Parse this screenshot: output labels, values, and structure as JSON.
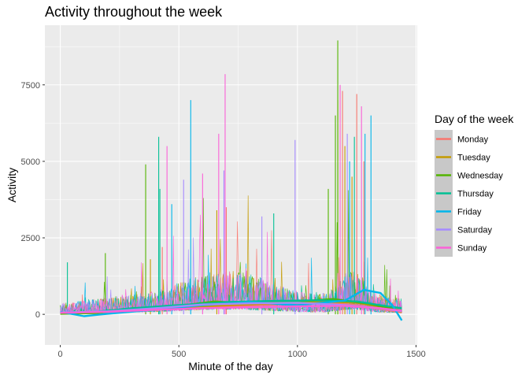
{
  "chart_data": {
    "type": "line",
    "title": "Activity throughout the week",
    "xlabel": "Minute of the day",
    "ylabel": "Activity",
    "xlim": [
      -65,
      1505
    ],
    "ylim": [
      -1000,
      9450
    ],
    "x_ticks": [
      0,
      500,
      1000,
      1500
    ],
    "x_tick_labels": [
      "0",
      "500",
      "1000",
      "1500"
    ],
    "y_ticks": [
      0,
      2500,
      5000,
      7500
    ],
    "y_tick_labels": [
      "0",
      "2500",
      "5000",
      "7500"
    ],
    "grid": true,
    "legend": {
      "title": "Day of the week",
      "placement": "right"
    },
    "series": [
      {
        "name": "Monday",
        "color": "#F8766D",
        "peaks": [
          [
            1190,
            7300
          ],
          [
            1250,
            7200
          ],
          [
            1280,
            5000
          ],
          [
            700,
            3500
          ],
          [
            430,
            2200
          ]
        ],
        "smooth": [
          [
            0,
            30
          ],
          [
            150,
            40
          ],
          [
            300,
            120
          ],
          [
            500,
            200
          ],
          [
            700,
            250
          ],
          [
            900,
            320
          ],
          [
            1100,
            380
          ],
          [
            1250,
            300
          ],
          [
            1350,
            180
          ],
          [
            1440,
            60
          ]
        ]
      },
      {
        "name": "Tuesday",
        "color": "#C49A00",
        "peaks": [
          [
            1170,
            7000
          ],
          [
            1200,
            5500
          ],
          [
            1230,
            4500
          ],
          [
            660,
            3400
          ],
          [
            380,
            1800
          ]
        ],
        "smooth": [
          [
            0,
            40
          ],
          [
            150,
            50
          ],
          [
            300,
            150
          ],
          [
            500,
            230
          ],
          [
            700,
            300
          ],
          [
            900,
            360
          ],
          [
            1100,
            420
          ],
          [
            1250,
            380
          ],
          [
            1350,
            250
          ],
          [
            1440,
            80
          ]
        ]
      },
      {
        "name": "Wednesday",
        "color": "#53B400",
        "peaks": [
          [
            1170,
            8950
          ],
          [
            1160,
            6500
          ],
          [
            360,
            4900
          ],
          [
            190,
            2000
          ],
          [
            1130,
            4100
          ]
        ],
        "smooth": [
          [
            0,
            20
          ],
          [
            150,
            40
          ],
          [
            300,
            160
          ],
          [
            500,
            280
          ],
          [
            650,
            420
          ],
          [
            800,
            360
          ],
          [
            1000,
            420
          ],
          [
            1150,
            500
          ],
          [
            1300,
            350
          ],
          [
            1440,
            120
          ]
        ]
      },
      {
        "name": "Thursday",
        "color": "#00C094",
        "peaks": [
          [
            415,
            5800
          ],
          [
            420,
            4100
          ],
          [
            30,
            1700
          ],
          [
            1240,
            5800
          ],
          [
            900,
            3300
          ]
        ],
        "smooth": [
          [
            0,
            60
          ],
          [
            150,
            80
          ],
          [
            300,
            200
          ],
          [
            500,
            300
          ],
          [
            700,
            400
          ],
          [
            900,
            440
          ],
          [
            1100,
            460
          ],
          [
            1250,
            420
          ],
          [
            1350,
            300
          ],
          [
            1440,
            200
          ]
        ]
      },
      {
        "name": "Friday",
        "color": "#00B6EB",
        "peaks": [
          [
            550,
            7000
          ],
          [
            1310,
            6500
          ],
          [
            1285,
            5900
          ],
          [
            1220,
            5000
          ],
          [
            470,
            3600
          ]
        ],
        "smooth": [
          [
            0,
            80
          ],
          [
            100,
            -60
          ],
          [
            200,
            20
          ],
          [
            400,
            150
          ],
          [
            600,
            300
          ],
          [
            800,
            400
          ],
          [
            1000,
            300
          ],
          [
            1200,
            450
          ],
          [
            1280,
            800
          ],
          [
            1350,
            700
          ],
          [
            1400,
            300
          ],
          [
            1440,
            -200
          ]
        ]
      },
      {
        "name": "Saturday",
        "color": "#A58AFF",
        "peaks": [
          [
            990,
            5700
          ],
          [
            1210,
            5900
          ],
          [
            520,
            4400
          ],
          [
            690,
            4700
          ],
          [
            850,
            3200
          ]
        ],
        "smooth": [
          [
            0,
            60
          ],
          [
            200,
            100
          ],
          [
            400,
            200
          ],
          [
            600,
            320
          ],
          [
            800,
            360
          ],
          [
            1000,
            380
          ],
          [
            1200,
            300
          ],
          [
            1350,
            200
          ],
          [
            1440,
            100
          ]
        ]
      },
      {
        "name": "Sunday",
        "color": "#FB61D7",
        "peaks": [
          [
            695,
            7850
          ],
          [
            668,
            5900
          ],
          [
            450,
            5500
          ],
          [
            1270,
            6800
          ],
          [
            1180,
            7500
          ],
          [
            600,
            4600
          ]
        ],
        "smooth": [
          [
            0,
            50
          ],
          [
            200,
            80
          ],
          [
            400,
            150
          ],
          [
            600,
            200
          ],
          [
            800,
            230
          ],
          [
            1000,
            260
          ],
          [
            1200,
            280
          ],
          [
            1350,
            200
          ],
          [
            1440,
            120
          ]
        ]
      }
    ]
  }
}
